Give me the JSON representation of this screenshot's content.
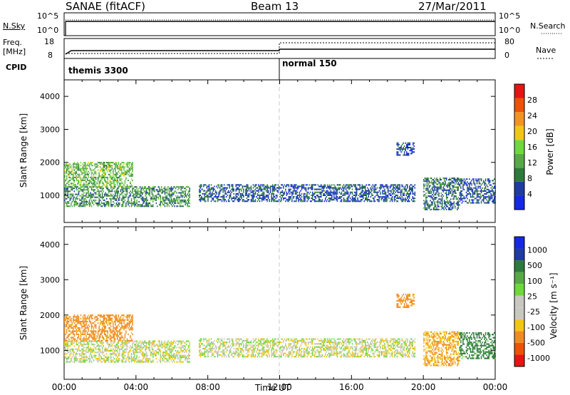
{
  "header": {
    "station": "SANAE (fitACF)",
    "beam": "Beam 13",
    "date": "27/Mar/2011"
  },
  "labels": {
    "nsky": "N.Sky",
    "freq": "Freq.",
    "mhz": "[MHz]",
    "cpid": "CPID",
    "nsearch": "N.Search",
    "nave": "Nave",
    "nsky_ticks": [
      "10^5",
      "10^0"
    ],
    "nsearch_ticks": [
      "10^5",
      "10^0"
    ],
    "freq_ticks": [
      "18",
      "8"
    ],
    "nave_ticks": [
      "80",
      "0"
    ],
    "cpid_program_1": "themis 3300",
    "cpid_program_2": "normal 150"
  },
  "colors": {
    "power_scale": [
      "#1428e6",
      "#1e3ca0",
      "#2e7a3c",
      "#58a848",
      "#6ed83c",
      "#f0c814",
      "#f0961e",
      "#f0500a",
      "#e61414"
    ],
    "velocity_scale": [
      "#e61414",
      "#f0500a",
      "#f08c1e",
      "#f0c814",
      "#c8c8c0",
      "#c8c8c0",
      "#6ed83c",
      "#58a848",
      "#2e7a3c",
      "#1e3ca0",
      "#1428e6"
    ],
    "ground_scatter": "#c8c8c0"
  },
  "chart_data": [
    {
      "type": "heatmap",
      "title": "Power",
      "ylabel": "Slant Range [km]",
      "xlabel": "",
      "xlim": [
        0,
        24
      ],
      "ylim": [
        180,
        4500
      ],
      "yticks": [
        "1000",
        "2000",
        "3000",
        "4000"
      ],
      "colorbar": {
        "label": "Power [dB]",
        "ticks": [
          "28",
          "24",
          "20",
          "16",
          "12",
          "8",
          "4"
        ],
        "range": [
          0,
          32
        ]
      },
      "echo_regions": [
        {
          "t_start": 0.0,
          "t_end": 7.0,
          "range_low": 650,
          "range_high": 1250,
          "power_db": 10
        },
        {
          "t_start": 0.0,
          "t_end": 3.8,
          "range_low": 1250,
          "range_high": 2000,
          "power_db": 14
        },
        {
          "t_start": 7.5,
          "t_end": 19.5,
          "range_low": 800,
          "range_high": 1300,
          "power_db": 6
        },
        {
          "t_start": 18.5,
          "t_end": 19.5,
          "range_low": 2200,
          "range_high": 2600,
          "power_db": 5
        },
        {
          "t_start": 20.0,
          "t_end": 22.0,
          "range_low": 550,
          "range_high": 1500,
          "power_db": 8
        },
        {
          "t_start": 22.0,
          "t_end": 24.0,
          "range_low": 750,
          "range_high": 1500,
          "power_db": 6
        }
      ]
    },
    {
      "type": "heatmap",
      "title": "Velocity",
      "ylabel": "Slant Range [km]",
      "xlabel": "Time UT",
      "xlim": [
        0,
        24
      ],
      "ylim": [
        180,
        4500
      ],
      "yticks": [
        "1000",
        "2000",
        "3000",
        "4000"
      ],
      "xticks": [
        "00:00",
        "04:00",
        "08:00",
        "12:00",
        "16:00",
        "20:00",
        "00:00"
      ],
      "colorbar": {
        "label": "Velocity [m s⁻¹]",
        "ticks": [
          "1000",
          "500",
          "100",
          "25",
          "-25",
          "-100",
          "-500",
          "-1000"
        ],
        "range": [
          -1000,
          1000
        ]
      },
      "echo_regions": [
        {
          "t_start": 0.0,
          "t_end": 7.0,
          "range_low": 650,
          "range_high": 1250,
          "velocity": 0
        },
        {
          "t_start": 0.0,
          "t_end": 3.8,
          "range_low": 1250,
          "range_high": 2000,
          "velocity": -150
        },
        {
          "t_start": 7.5,
          "t_end": 19.5,
          "range_low": 800,
          "range_high": 1300,
          "velocity": 0
        },
        {
          "t_start": 18.5,
          "t_end": 19.5,
          "range_low": 2200,
          "range_high": 2600,
          "velocity": -150
        },
        {
          "t_start": 20.0,
          "t_end": 22.0,
          "range_low": 550,
          "range_high": 1500,
          "velocity": -100
        },
        {
          "t_start": 22.0,
          "t_end": 24.0,
          "range_low": 750,
          "range_high": 1500,
          "velocity": 150
        }
      ]
    }
  ]
}
